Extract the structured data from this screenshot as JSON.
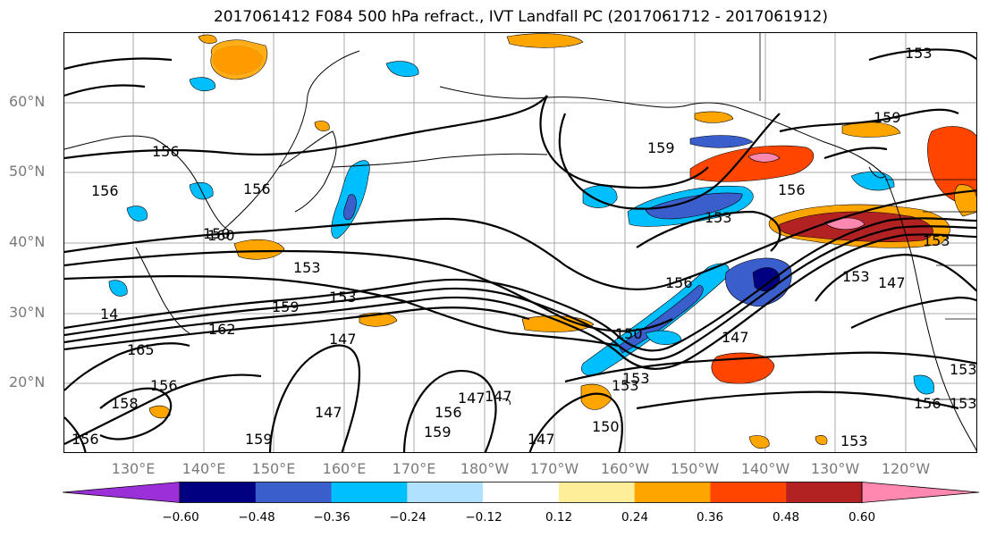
{
  "title": "2017061412 F084 500 hPa refract., IVT Landfall PC (2017061712 - 2017061912)",
  "lat_labels": [
    "60°N",
    "50°N",
    "40°N",
    "30°N",
    "20°N"
  ],
  "lon_labels": [
    "130°E",
    "140°E",
    "150°E",
    "160°E",
    "170°E",
    "180°W",
    "170°W",
    "160°W",
    "150°W",
    "140°W",
    "130°W",
    "120°W"
  ],
  "colorbar": {
    "colors": [
      "#9b30d9",
      "#000080",
      "#3a5fcd",
      "#00bfff",
      "#b0e2ff",
      "#ffffff",
      "#ffee99",
      "#ffa500",
      "#ff4500",
      "#b22222",
      "#ff88b0"
    ],
    "tick_labels": [
      "−0.60",
      "−0.48",
      "−0.36",
      "−0.24",
      "−0.12",
      "0.12",
      "0.24",
      "0.36",
      "0.48",
      "0.60"
    ]
  },
  "contour_labels": [
    "156",
    "156",
    "156",
    "159",
    "159",
    "160",
    "153",
    "153",
    "147",
    "162",
    "159",
    "156",
    "153",
    "150",
    "147",
    "147",
    "147",
    "147",
    "153",
    "153",
    "156",
    "156",
    "150",
    "159",
    "153",
    "153",
    "153",
    "147",
    "165",
    "14",
    "158",
    "147",
    "156",
    "159",
    "156",
    "156",
    "150",
    "153",
    "153",
    "153"
  ]
}
